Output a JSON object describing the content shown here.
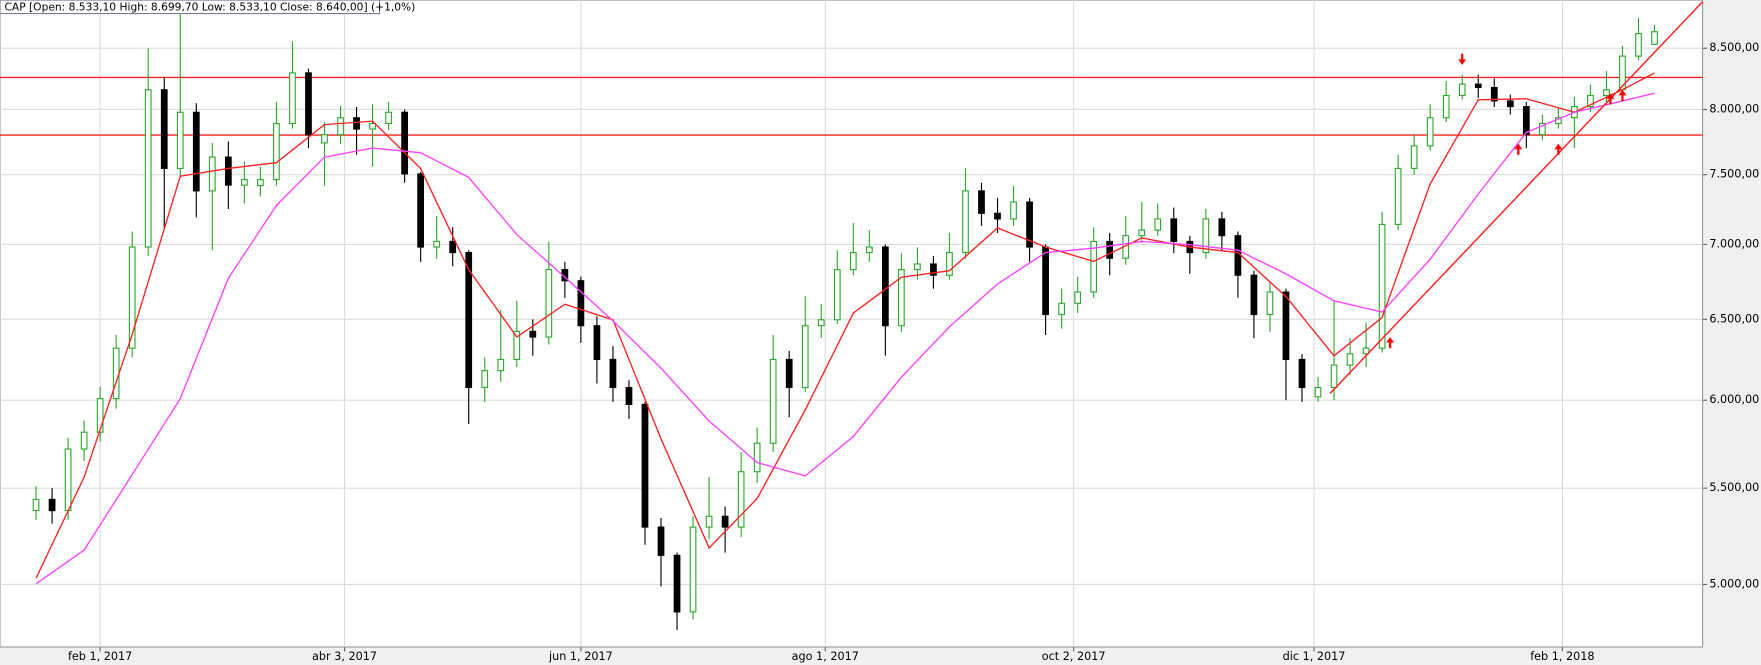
{
  "chart_data": {
    "type": "candlestick",
    "header": "CAP [Open: 8.533,10  High: 8.699,70  Low: 8.533,10  Close: 8.640,00] (+1,0%)",
    "yscale": "log",
    "grid": true,
    "xlim": [
      "2017-01-07",
      "2018-03-08"
    ],
    "ylim": [
      4700,
      8915
    ],
    "xticks": [
      {
        "value": "2017-02-01",
        "label": "feb 1, 2017"
      },
      {
        "value": "2017-04-03",
        "label": "abr 3, 2017"
      },
      {
        "value": "2017-06-01",
        "label": "jun 1, 2017"
      },
      {
        "value": "2017-08-01",
        "label": "ago 1, 2017"
      },
      {
        "value": "2017-10-02",
        "label": "oct 2, 2017"
      },
      {
        "value": "2017-12-01",
        "label": "dic 1, 2017"
      },
      {
        "value": "2018-02-01",
        "label": "feb 1, 2018"
      }
    ],
    "yticks": [
      {
        "value": 5000,
        "label": "5.000,00"
      },
      {
        "value": 5500,
        "label": "5.500,00"
      },
      {
        "value": 6000,
        "label": "6.000,00"
      },
      {
        "value": 6500,
        "label": "6.500,00"
      },
      {
        "value": 7000,
        "label": "7.000,00"
      },
      {
        "value": 7500,
        "label": "7.500,00"
      },
      {
        "value": 8000,
        "label": "8.000,00"
      },
      {
        "value": 8500,
        "label": "8.500,00"
      }
    ],
    "candles": {
      "up_color": "#2ca82c",
      "down_color": "#000000",
      "x": [
        "2017-01-16",
        "2017-01-20",
        "2017-01-24",
        "2017-01-28",
        "2017-02-01",
        "2017-02-05",
        "2017-02-09",
        "2017-02-13",
        "2017-02-17",
        "2017-02-21",
        "2017-02-25",
        "2017-03-01",
        "2017-03-05",
        "2017-03-09",
        "2017-03-13",
        "2017-03-17",
        "2017-03-21",
        "2017-03-25",
        "2017-03-29",
        "2017-04-02",
        "2017-04-06",
        "2017-04-10",
        "2017-04-14",
        "2017-04-18",
        "2017-04-22",
        "2017-04-26",
        "2017-04-30",
        "2017-05-04",
        "2017-05-08",
        "2017-05-12",
        "2017-05-16",
        "2017-05-20",
        "2017-05-24",
        "2017-05-28",
        "2017-06-01",
        "2017-06-05",
        "2017-06-09",
        "2017-06-13",
        "2017-06-17",
        "2017-06-21",
        "2017-06-25",
        "2017-06-29",
        "2017-07-03",
        "2017-07-07",
        "2017-07-11",
        "2017-07-15",
        "2017-07-19",
        "2017-07-23",
        "2017-07-27",
        "2017-07-31",
        "2017-08-04",
        "2017-08-08",
        "2017-08-12",
        "2017-08-16",
        "2017-08-20",
        "2017-08-24",
        "2017-08-28",
        "2017-09-01",
        "2017-09-05",
        "2017-09-09",
        "2017-09-13",
        "2017-09-17",
        "2017-09-21",
        "2017-09-25",
        "2017-09-29",
        "2017-10-03",
        "2017-10-07",
        "2017-10-11",
        "2017-10-15",
        "2017-10-19",
        "2017-10-23",
        "2017-10-27",
        "2017-10-31",
        "2017-11-04",
        "2017-11-08",
        "2017-11-12",
        "2017-11-16",
        "2017-11-20",
        "2017-11-24",
        "2017-11-28",
        "2017-12-02",
        "2017-12-06",
        "2017-12-10",
        "2017-12-14",
        "2017-12-18",
        "2017-12-22",
        "2017-12-26",
        "2017-12-30",
        "2018-01-03",
        "2018-01-07",
        "2018-01-11",
        "2018-01-15",
        "2018-01-19",
        "2018-01-23",
        "2018-01-27",
        "2018-01-31",
        "2018-02-04",
        "2018-02-08",
        "2018-02-12",
        "2018-02-16",
        "2018-02-20",
        "2018-02-24"
      ],
      "open": [
        5380,
        5439,
        5379,
        5717,
        5813,
        6009,
        6317,
        6982,
        8158,
        7547,
        7978,
        7381,
        7632,
        7423,
        7420,
        7464,
        7890,
        8295,
        7740,
        7803,
        7935,
        7847,
        7890,
        7978,
        7506,
        6982,
        7021,
        6944,
        6076,
        6178,
        6247,
        6423,
        6387,
        6828,
        6753,
        6459,
        6247,
        6076,
        5975,
        5292,
        5146,
        4866,
        5292,
        5349,
        5292,
        5590,
        5750,
        6247,
        6076,
        6459,
        6497,
        6828,
        6944,
        6982,
        6459,
        6828,
        6866,
        6790,
        6944,
        7381,
        7219,
        7179,
        7300,
        6982,
        6531,
        6604,
        6678,
        7021,
        6905,
        7061,
        7100,
        7179,
        7021,
        6944,
        7179,
        7061,
        6790,
        6531,
        6678,
        6247,
        6020,
        6076,
        6212,
        6282,
        6317,
        7140,
        7547,
        7717,
        7935,
        8112,
        8203,
        8176,
        8068,
        8023,
        7803,
        7890,
        7935,
        8023,
        8112,
        8158,
        8434,
        8533.1
      ],
      "high": [
        5510,
        5500,
        5780,
        5880,
        6080,
        6400,
        7090,
        8500,
        8260,
        8870,
        8050,
        7740,
        7750,
        7600,
        7560,
        8060,
        8560,
        8330,
        7900,
        8030,
        8020,
        8040,
        8060,
        8000,
        7520,
        7200,
        7120,
        6960,
        6260,
        6560,
        6620,
        6500,
        7020,
        6880,
        6780,
        6520,
        6330,
        6120,
        5990,
        5340,
        5160,
        5350,
        5560,
        5400,
        5700,
        5840,
        6400,
        6300,
        6650,
        6600,
        6960,
        7150,
        7100,
        7000,
        6940,
        6980,
        6920,
        7080,
        7550,
        7440,
        7330,
        7420,
        7330,
        7000,
        6700,
        6780,
        7120,
        7080,
        7200,
        7300,
        7290,
        7260,
        7060,
        7250,
        7230,
        7090,
        6820,
        6750,
        6700,
        6280,
        6140,
        6620,
        6380,
        6480,
        7230,
        7650,
        7810,
        8040,
        8230,
        8280,
        8280,
        8250,
        8120,
        8060,
        7960,
        8010,
        8100,
        8200,
        8310,
        8520,
        8760,
        8699.7
      ],
      "low": [
        5330,
        5310,
        5330,
        5650,
        5760,
        5950,
        6260,
        6920,
        7110,
        7480,
        7190,
        6960,
        7250,
        7290,
        7340,
        7420,
        7850,
        7700,
        7420,
        7730,
        7650,
        7560,
        7840,
        7440,
        6880,
        6900,
        6850,
        5860,
        5990,
        6110,
        6200,
        6270,
        6340,
        6640,
        6350,
        6100,
        5990,
        5890,
        5200,
        4990,
        4780,
        4830,
        5230,
        5160,
        5240,
        5530,
        5700,
        5900,
        6050,
        6380,
        6470,
        6790,
        6880,
        6270,
        6420,
        6760,
        6700,
        6760,
        6900,
        7130,
        7080,
        7130,
        6880,
        6400,
        6440,
        6540,
        6640,
        6790,
        6860,
        7010,
        7060,
        6940,
        6800,
        6900,
        6960,
        6640,
        6380,
        6420,
        6000,
        5990,
        5990,
        6000,
        6150,
        6200,
        6290,
        7100,
        7500,
        7680,
        7900,
        8080,
        8090,
        8020,
        7960,
        7700,
        7760,
        7850,
        7700,
        7980,
        8060,
        8120,
        8400,
        8533.1
      ],
      "close": [
        5439,
        5379,
        5717,
        5813,
        6009,
        6317,
        6982,
        8158,
        7547,
        7978,
        7381,
        7632,
        7423,
        7464,
        7464,
        7890,
        8295,
        7803,
        7803,
        7935,
        7847,
        7890,
        7978,
        7506,
        6982,
        7021,
        6944,
        6076,
        6178,
        6247,
        6423,
        6387,
        6828,
        6753,
        6459,
        6247,
        6076,
        5975,
        5292,
        5146,
        4866,
        5292,
        5349,
        5292,
        5590,
        5750,
        6247,
        6076,
        6459,
        6497,
        6828,
        6944,
        6982,
        6459,
        6828,
        6866,
        6790,
        6944,
        7381,
        7219,
        7179,
        7300,
        6982,
        6531,
        6604,
        6678,
        7021,
        6905,
        7061,
        7100,
        7179,
        7021,
        6944,
        7179,
        7061,
        6790,
        6531,
        6678,
        6247,
        6076,
        6076,
        6212,
        6282,
        6317,
        7140,
        7547,
        7717,
        7935,
        8112,
        8203,
        8176,
        8068,
        8023,
        7803,
        7890,
        7935,
        8023,
        8112,
        8158,
        8434,
        8624,
        8640
      ]
    },
    "series": [
      {
        "color": "#ff2020",
        "x": [
          "2017-01-16",
          "2017-01-28",
          "2017-02-09",
          "2017-02-21",
          "2017-03-05",
          "2017-03-17",
          "2017-03-29",
          "2017-04-10",
          "2017-04-22",
          "2017-05-04",
          "2017-05-16",
          "2017-05-28",
          "2017-06-09",
          "2017-06-21",
          "2017-07-03",
          "2017-07-15",
          "2017-07-27",
          "2017-08-08",
          "2017-08-20",
          "2017-09-01",
          "2017-09-13",
          "2017-09-25",
          "2017-10-07",
          "2017-10-19",
          "2017-10-31",
          "2017-11-12",
          "2017-11-24",
          "2017-12-06",
          "2017-12-18",
          "2017-12-30",
          "2018-01-11",
          "2018-01-23",
          "2018-02-04",
          "2018-02-16",
          "2018-02-24"
        ],
        "values": [
          5031,
          5560,
          6403,
          7489,
          7547,
          7590,
          7881,
          7908,
          7547,
          6828,
          6387,
          6598,
          6497,
          5774,
          5184,
          5444,
          5943,
          6540,
          6776,
          6820,
          7115,
          6982,
          6883,
          7045,
          6982,
          6944,
          6649,
          6270,
          6511,
          7431,
          8077,
          8085,
          7978,
          8158,
          8295
        ]
      },
      {
        "color": "#ff40ff",
        "x": [
          "2017-01-16",
          "2017-01-28",
          "2017-02-09",
          "2017-02-21",
          "2017-03-05",
          "2017-03-17",
          "2017-03-29",
          "2017-04-10",
          "2017-04-22",
          "2017-05-04",
          "2017-05-16",
          "2017-05-28",
          "2017-06-09",
          "2017-06-21",
          "2017-07-03",
          "2017-07-15",
          "2017-07-27",
          "2017-08-08",
          "2017-08-20",
          "2017-09-01",
          "2017-09-13",
          "2017-09-25",
          "2017-10-07",
          "2017-10-19",
          "2017-10-31",
          "2017-11-12",
          "2017-11-24",
          "2017-12-06",
          "2017-12-18",
          "2017-12-30",
          "2018-01-11",
          "2018-01-23",
          "2018-02-04",
          "2018-02-16",
          "2018-02-24"
        ],
        "values": [
          5003,
          5173,
          5574,
          6009,
          6769,
          7275,
          7632,
          7700,
          7665,
          7480,
          7069,
          6776,
          6490,
          6193,
          5878,
          5641,
          5567,
          5788,
          6138,
          6452,
          6731,
          6944,
          6974,
          7021,
          6998,
          6960,
          6799,
          6620,
          6547,
          6898,
          7357,
          7820,
          7978,
          8068,
          8130
        ]
      }
    ],
    "levels": {
      "color": "#ff2020",
      "values": [
        8258,
        7800
      ]
    },
    "trendline": {
      "color": "#ff2020",
      "x": [
        "2017-12-05",
        "2018-03-08"
      ],
      "values": [
        6040,
        8900
      ]
    },
    "markers": {
      "color": "#ff0000",
      "x": [
        "2018-01-07",
        "2017-12-20",
        "2018-01-21",
        "2018-01-31",
        "2018-02-13",
        "2018-02-16"
      ],
      "values": [
        8360,
        6387,
        7734,
        7734,
        8130,
        8158
      ],
      "direction": [
        "down",
        "up",
        "up",
        "up",
        "up",
        "up"
      ]
    }
  }
}
